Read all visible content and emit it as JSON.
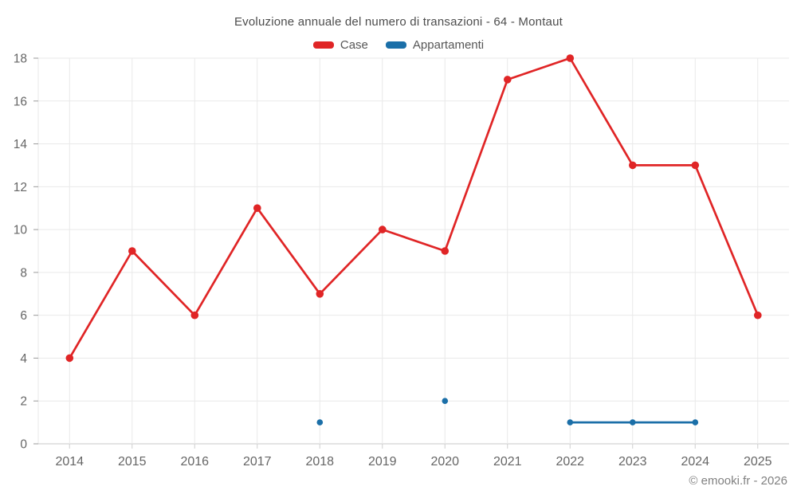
{
  "title": "Evoluzione annuale del numero di transazioni - 64 - Montaut",
  "footer": "© emooki.fr - 2026",
  "chart_data": {
    "type": "line",
    "categories": [
      "2014",
      "2015",
      "2016",
      "2017",
      "2018",
      "2019",
      "2020",
      "2021",
      "2022",
      "2023",
      "2024",
      "2025"
    ],
    "series": [
      {
        "name": "Case",
        "color": "#e02526",
        "values": [
          4,
          9,
          6,
          11,
          7,
          10,
          9,
          17,
          18,
          13,
          13,
          6
        ]
      },
      {
        "name": "Appartamenti",
        "color": "#1b6fa8",
        "values": [
          null,
          null,
          null,
          null,
          1,
          null,
          2,
          null,
          1,
          1,
          1,
          null
        ]
      }
    ],
    "title": "Evoluzione annuale del numero di transazioni - 64 - Montaut",
    "xlabel": "",
    "ylabel": "",
    "ylim": [
      0,
      18
    ],
    "ytick_step": 2,
    "grid": true,
    "legend_position": "top",
    "annotations": []
  },
  "colors": {
    "case_red": "#e02526",
    "appartamenti_blue": "#1b6fa8",
    "gridline": "#e9e9e9",
    "axis_line": "#c9c9c9",
    "tick_label": "#666666",
    "title_text": "#4d4d4d",
    "footer_text": "#818181"
  }
}
